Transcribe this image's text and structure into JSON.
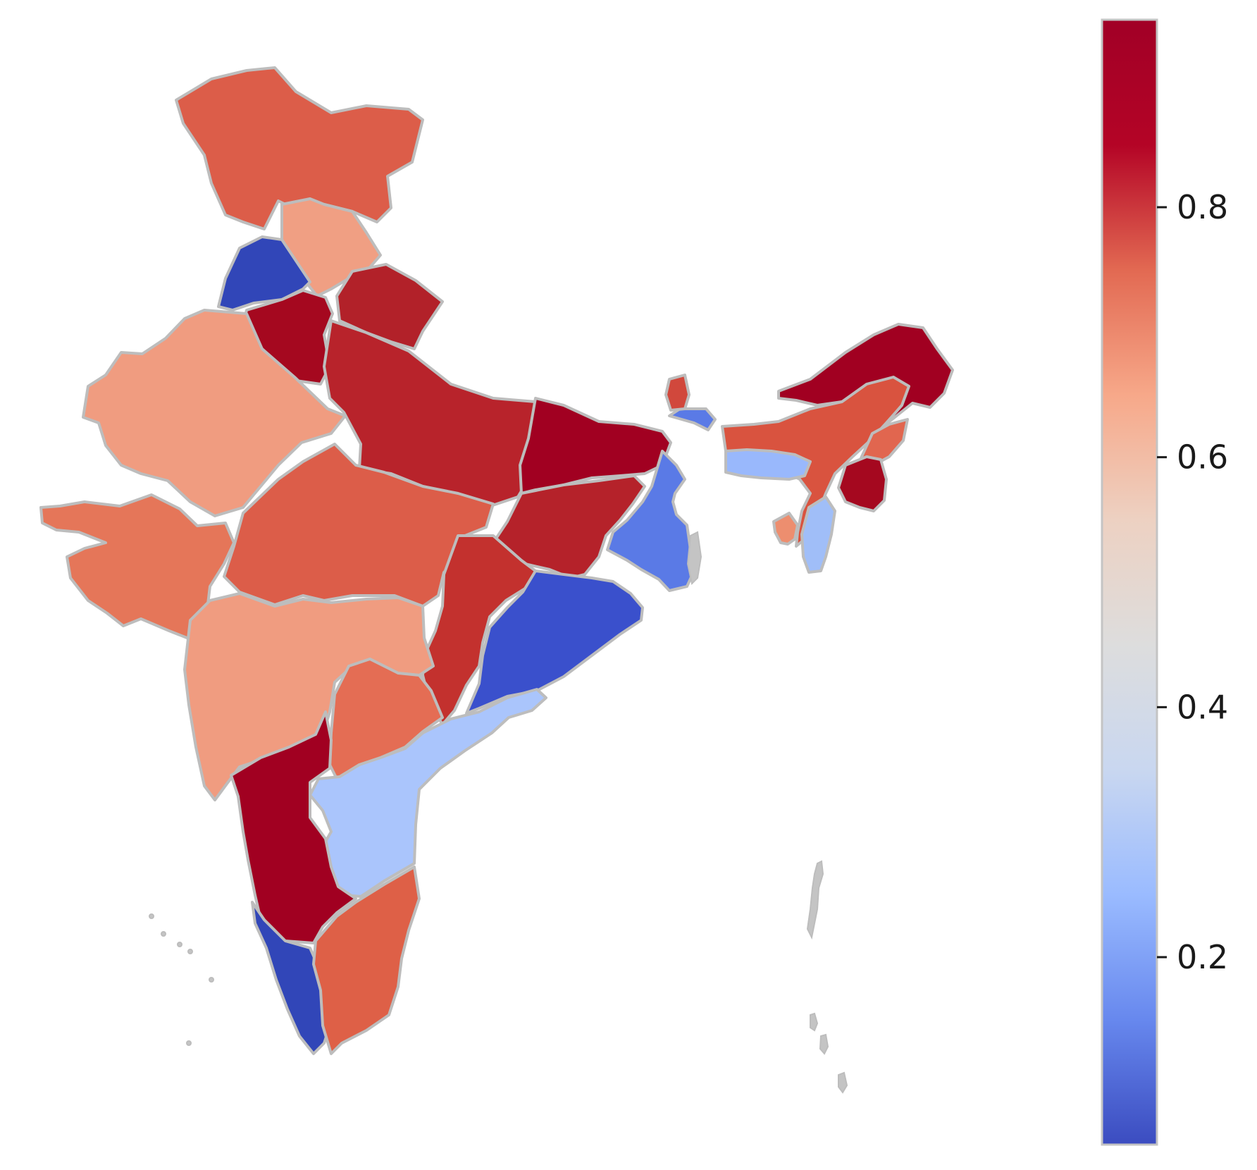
{
  "chart_data": {
    "type": "choropleth",
    "title": "",
    "colormap": "coolwarm",
    "colorbar": {
      "min": 0.05,
      "max": 0.95,
      "ticks": [
        {
          "value": 0.2,
          "label": "0.2"
        },
        {
          "value": 0.4,
          "label": "0.4"
        },
        {
          "value": 0.6,
          "label": "0.6"
        },
        {
          "value": 0.8,
          "label": "0.8"
        }
      ],
      "gradient_stops": [
        "#3b4cc0",
        "#6788ee",
        "#9abbff",
        "#c9d7f0",
        "#dddddd",
        "#edd1c2",
        "#f7a889",
        "#e26952",
        "#b40426",
        "#a10026"
      ]
    },
    "regions": [
      {
        "id": "jammu-kashmir",
        "value": 0.8,
        "color": "#dc5d49"
      },
      {
        "id": "himachal-pradesh",
        "value": 0.67,
        "color": "#f09f83"
      },
      {
        "id": "punjab",
        "value": 0.05,
        "color": "#3146b8"
      },
      {
        "id": "haryana",
        "value": 0.94,
        "color": "#a5081f"
      },
      {
        "id": "uttarakhand",
        "value": 0.9,
        "color": "#b22129"
      },
      {
        "id": "uttar-pradesh",
        "value": 0.9,
        "color": "#b8232b"
      },
      {
        "id": "rajasthan",
        "value": 0.68,
        "color": "#f09c80"
      },
      {
        "id": "gujarat",
        "value": 0.75,
        "color": "#e57659"
      },
      {
        "id": "madhya-pradesh",
        "value": 0.8,
        "color": "#dc5d49"
      },
      {
        "id": "bihar",
        "value": 0.95,
        "color": "#a10021"
      },
      {
        "id": "jharkhand",
        "value": 0.9,
        "color": "#b5222a"
      },
      {
        "id": "west-bengal",
        "value": 0.2,
        "color": "#5a7ae6"
      },
      {
        "id": "sikkim",
        "value": 0.85,
        "color": "#d1483c"
      },
      {
        "id": "chhattisgarh",
        "value": 0.87,
        "color": "#c3312e"
      },
      {
        "id": "odisha",
        "value": 0.1,
        "color": "#3a50cc"
      },
      {
        "id": "maharashtra",
        "value": 0.68,
        "color": "#f09c80"
      },
      {
        "id": "telangana",
        "value": 0.77,
        "color": "#e46d54"
      },
      {
        "id": "andhra-pradesh",
        "value": 0.4,
        "color": "#aac5fc"
      },
      {
        "id": "karnataka",
        "value": 0.95,
        "color": "#a10021"
      },
      {
        "id": "kerala",
        "value": 0.06,
        "color": "#3146b8"
      },
      {
        "id": "tamil-nadu",
        "value": 0.8,
        "color": "#de6047"
      },
      {
        "id": "arunachal-pradesh",
        "value": 0.95,
        "color": "#a10021"
      },
      {
        "id": "assam",
        "value": 0.82,
        "color": "#d9533f"
      },
      {
        "id": "meghalaya",
        "value": 0.34,
        "color": "#99b8fc"
      },
      {
        "id": "nagaland",
        "value": 0.78,
        "color": "#e1664f"
      },
      {
        "id": "manipur",
        "value": 0.94,
        "color": "#a5081f"
      },
      {
        "id": "mizoram",
        "value": 0.35,
        "color": "#a0bef8"
      },
      {
        "id": "tripura",
        "value": 0.72,
        "color": "#ed8e6f"
      }
    ]
  }
}
